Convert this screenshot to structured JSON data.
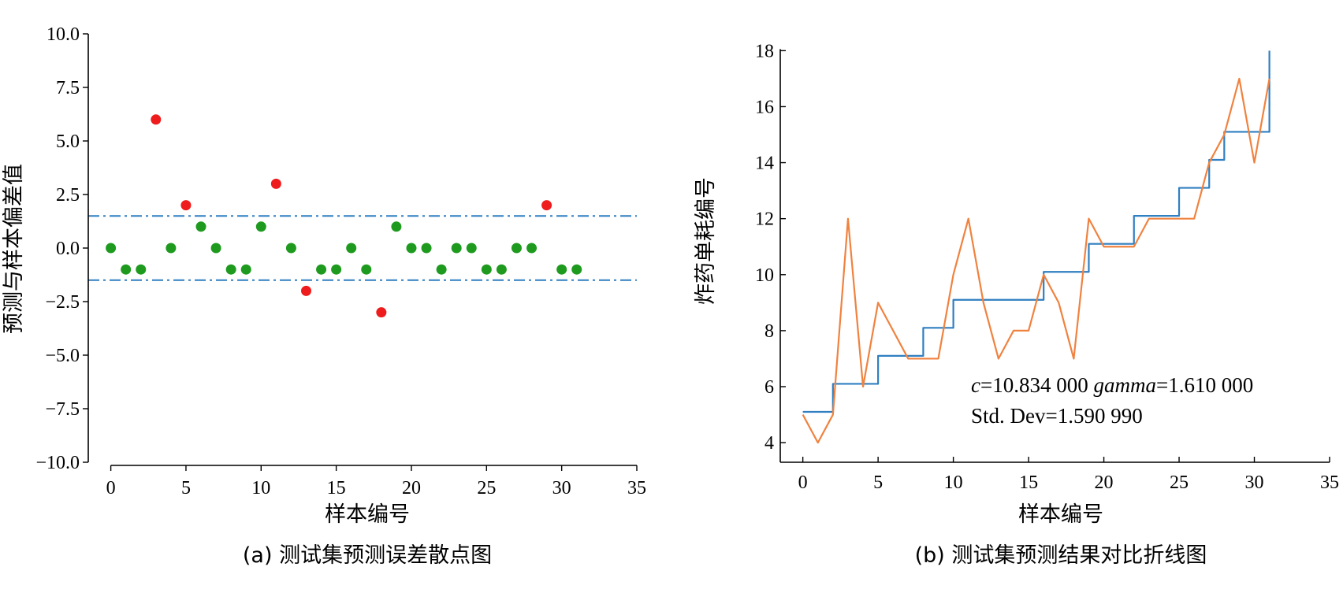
{
  "chart_data": [
    {
      "type": "scatter",
      "caption": "(a) 测试集预测误差散点图",
      "xlabel": "样本编号",
      "ylabel": "预测与样本偏差值",
      "xlim": [
        -1.5,
        35
      ],
      "ylim": [
        -10,
        10
      ],
      "xticks": [
        0,
        5,
        10,
        15,
        20,
        25,
        30,
        35
      ],
      "yticks": [
        10.0,
        7.5,
        5.0,
        2.5,
        0.0,
        -2.5,
        -5.0,
        -7.5,
        -10.0
      ],
      "ytick_labels": [
        "10.0",
        "7.5",
        "5.0",
        "2.5",
        "0.0",
        "−2.5",
        "−5.0",
        "−7.5",
        "−10.0"
      ],
      "threshold_lines": [
        1.5,
        -1.5
      ],
      "colors": {
        "in_range": "#1e9a1e",
        "out_of_range": "#ee1c1c",
        "threshold": "#2f7fc1"
      },
      "x": [
        0,
        1,
        2,
        3,
        4,
        5,
        6,
        7,
        8,
        9,
        10,
        11,
        12,
        13,
        14,
        15,
        16,
        17,
        18,
        19,
        20,
        21,
        22,
        23,
        24,
        25,
        26,
        27,
        28,
        29,
        30,
        31
      ],
      "y": [
        0,
        -1,
        -1,
        6,
        0,
        2,
        1,
        0,
        -1,
        -1,
        1,
        3,
        0,
        -2,
        -1,
        -1,
        0,
        -1,
        -3,
        1,
        0,
        0,
        -1,
        0,
        0,
        -1,
        -1,
        0,
        0,
        2,
        -1,
        -1
      ]
    },
    {
      "type": "line",
      "caption": "(b) 测试集预测结果对比折线图",
      "xlabel": "样本编号",
      "ylabel": "炸药单耗编号",
      "xlim": [
        -1.5,
        35
      ],
      "ylim": [
        3.3,
        18.6
      ],
      "xticks": [
        0,
        5,
        10,
        15,
        20,
        25,
        30,
        35
      ],
      "yticks": [
        4,
        6,
        8,
        10,
        12,
        14,
        16,
        18
      ],
      "x": [
        0,
        1,
        2,
        3,
        4,
        5,
        6,
        7,
        8,
        9,
        10,
        11,
        12,
        13,
        14,
        15,
        16,
        17,
        18,
        19,
        20,
        21,
        22,
        23,
        24,
        25,
        26,
        27,
        28,
        29,
        30,
        31
      ],
      "series": [
        {
          "color": "#2f7fc1",
          "step": true,
          "values": [
            5.1,
            5.1,
            6.1,
            6.1,
            6.1,
            7.1,
            7.1,
            7.1,
            8.1,
            8.1,
            9.1,
            9.1,
            9.1,
            9.1,
            9.1,
            9.1,
            10.1,
            10.1,
            10.1,
            11.1,
            11.1,
            11.1,
            12.1,
            12.1,
            12.1,
            13.1,
            13.1,
            14.1,
            15.1,
            15.1,
            15.1,
            18
          ]
        },
        {
          "color": "#f0823f",
          "step": false,
          "values": [
            5,
            4,
            5,
            12,
            6,
            9,
            8,
            7,
            7,
            7,
            10,
            12,
            9,
            7,
            8,
            8,
            10,
            9,
            7,
            12,
            11,
            11,
            11,
            12,
            12,
            12,
            12,
            14,
            15,
            17,
            14,
            17
          ]
        }
      ],
      "annotation_line1": {
        "c_label": "c",
        "c_value": "=10.834 000 ",
        "g_label": "gamma",
        "g_value": "=1.610 000"
      },
      "annotation_line2": "Std. Dev=1.590 990"
    }
  ]
}
